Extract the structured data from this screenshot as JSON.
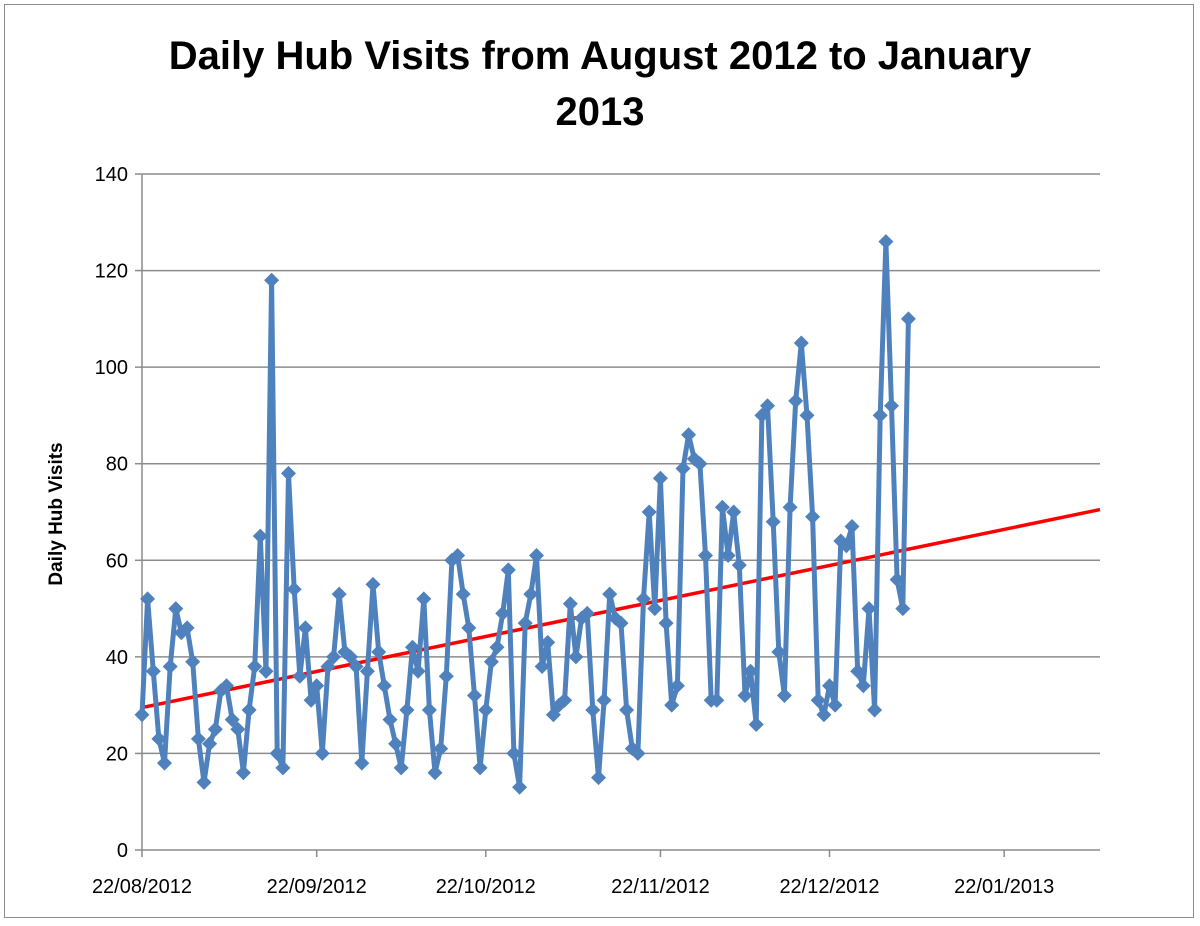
{
  "chart_data": {
    "type": "line",
    "title_lines": [
      "Daily Hub Visits from August 2012 to January",
      "2013"
    ],
    "xlabel": "",
    "ylabel": "Daily Hub Visits",
    "ylim": [
      0,
      140
    ],
    "y_ticks": [
      0,
      20,
      40,
      60,
      80,
      100,
      120,
      140
    ],
    "x_ticks": [
      "22/08/2012",
      "22/09/2012",
      "22/10/2012",
      "22/11/2012",
      "22/12/2012",
      "22/01/2013"
    ],
    "xlim": [
      "2012-08-22",
      "2013-02-08"
    ],
    "grid": true,
    "legend": "none",
    "series": [
      {
        "color": "#4f81bd",
        "marker": "diamond",
        "points": [
          [
            "2012-08-22",
            28
          ],
          [
            "2012-08-23",
            52
          ],
          [
            "2012-08-24",
            37
          ],
          [
            "2012-08-25",
            23
          ],
          [
            "2012-08-26",
            18
          ],
          [
            "2012-08-27",
            38
          ],
          [
            "2012-08-28",
            50
          ],
          [
            "2012-08-29",
            45
          ],
          [
            "2012-08-30",
            46
          ],
          [
            "2012-08-31",
            39
          ],
          [
            "2012-09-01",
            23
          ],
          [
            "2012-09-02",
            14
          ],
          [
            "2012-09-03",
            22
          ],
          [
            "2012-09-04",
            25
          ],
          [
            "2012-09-05",
            33
          ],
          [
            "2012-09-06",
            34
          ],
          [
            "2012-09-07",
            27
          ],
          [
            "2012-09-08",
            25
          ],
          [
            "2012-09-09",
            16
          ],
          [
            "2012-09-10",
            29
          ],
          [
            "2012-09-11",
            38
          ],
          [
            "2012-09-12",
            65
          ],
          [
            "2012-09-13",
            37
          ],
          [
            "2012-09-14",
            118
          ],
          [
            "2012-09-15",
            20
          ],
          [
            "2012-09-16",
            17
          ],
          [
            "2012-09-17",
            78
          ],
          [
            "2012-09-18",
            54
          ],
          [
            "2012-09-19",
            36
          ],
          [
            "2012-09-20",
            46
          ],
          [
            "2012-09-21",
            31
          ],
          [
            "2012-09-22",
            34
          ],
          [
            "2012-09-23",
            20
          ],
          [
            "2012-09-24",
            38
          ],
          [
            "2012-09-25",
            40
          ],
          [
            "2012-09-26",
            53
          ],
          [
            "2012-09-27",
            41
          ],
          [
            "2012-09-28",
            40
          ],
          [
            "2012-09-29",
            38
          ],
          [
            "2012-09-30",
            18
          ],
          [
            "2012-10-01",
            37
          ],
          [
            "2012-10-02",
            55
          ],
          [
            "2012-10-03",
            41
          ],
          [
            "2012-10-04",
            34
          ],
          [
            "2012-10-05",
            27
          ],
          [
            "2012-10-06",
            22
          ],
          [
            "2012-10-07",
            17
          ],
          [
            "2012-10-08",
            29
          ],
          [
            "2012-10-09",
            42
          ],
          [
            "2012-10-10",
            37
          ],
          [
            "2012-10-11",
            52
          ],
          [
            "2012-10-12",
            29
          ],
          [
            "2012-10-13",
            16
          ],
          [
            "2012-10-14",
            21
          ],
          [
            "2012-10-15",
            36
          ],
          [
            "2012-10-16",
            60
          ],
          [
            "2012-10-17",
            61
          ],
          [
            "2012-10-18",
            53
          ],
          [
            "2012-10-19",
            46
          ],
          [
            "2012-10-20",
            32
          ],
          [
            "2012-10-21",
            17
          ],
          [
            "2012-10-22",
            29
          ],
          [
            "2012-10-23",
            39
          ],
          [
            "2012-10-24",
            42
          ],
          [
            "2012-10-25",
            49
          ],
          [
            "2012-10-26",
            58
          ],
          [
            "2012-10-27",
            20
          ],
          [
            "2012-10-28",
            13
          ],
          [
            "2012-10-29",
            47
          ],
          [
            "2012-10-30",
            53
          ],
          [
            "2012-10-31",
            61
          ],
          [
            "2012-11-01",
            38
          ],
          [
            "2012-11-02",
            43
          ],
          [
            "2012-11-03",
            28
          ],
          [
            "2012-11-04",
            30
          ],
          [
            "2012-11-05",
            31
          ],
          [
            "2012-11-06",
            51
          ],
          [
            "2012-11-07",
            40
          ],
          [
            "2012-11-08",
            48
          ],
          [
            "2012-11-09",
            49
          ],
          [
            "2012-11-10",
            29
          ],
          [
            "2012-11-11",
            15
          ],
          [
            "2012-11-12",
            31
          ],
          [
            "2012-11-13",
            53
          ],
          [
            "2012-11-14",
            48
          ],
          [
            "2012-11-15",
            47
          ],
          [
            "2012-11-16",
            29
          ],
          [
            "2012-11-17",
            21
          ],
          [
            "2012-11-18",
            20
          ],
          [
            "2012-11-19",
            52
          ],
          [
            "2012-11-20",
            70
          ],
          [
            "2012-11-21",
            50
          ],
          [
            "2012-11-22",
            77
          ],
          [
            "2012-11-23",
            47
          ],
          [
            "2012-11-24",
            30
          ],
          [
            "2012-11-25",
            34
          ],
          [
            "2012-11-26",
            79
          ],
          [
            "2012-11-27",
            86
          ],
          [
            "2012-11-28",
            81
          ],
          [
            "2012-11-29",
            80
          ],
          [
            "2012-11-30",
            61
          ],
          [
            "2012-12-01",
            31
          ],
          [
            "2012-12-02",
            31
          ],
          [
            "2012-12-03",
            71
          ],
          [
            "2012-12-04",
            61
          ],
          [
            "2012-12-05",
            70
          ],
          [
            "2012-12-06",
            59
          ],
          [
            "2012-12-07",
            32
          ],
          [
            "2012-12-08",
            37
          ],
          [
            "2012-12-09",
            26
          ],
          [
            "2012-12-10",
            90
          ],
          [
            "2012-12-11",
            92
          ],
          [
            "2012-12-12",
            68
          ],
          [
            "2012-12-13",
            41
          ],
          [
            "2012-12-14",
            32
          ],
          [
            "2012-12-15",
            71
          ],
          [
            "2012-12-16",
            93
          ],
          [
            "2012-12-17",
            105
          ],
          [
            "2012-12-18",
            90
          ],
          [
            "2012-12-19",
            69
          ],
          [
            "2012-12-20",
            31
          ],
          [
            "2012-12-21",
            28
          ],
          [
            "2012-12-22",
            34
          ],
          [
            "2012-12-23",
            30
          ],
          [
            "2012-12-24",
            64
          ],
          [
            "2012-12-25",
            63
          ],
          [
            "2012-12-26",
            67
          ],
          [
            "2012-12-27",
            37
          ],
          [
            "2012-12-28",
            34
          ],
          [
            "2012-12-29",
            50
          ],
          [
            "2012-12-30",
            29
          ],
          [
            "2012-12-31",
            90
          ],
          [
            "2013-01-01",
            126
          ],
          [
            "2013-01-02",
            92
          ],
          [
            "2013-01-03",
            56
          ],
          [
            "2013-01-04",
            50
          ],
          [
            "2013-01-05",
            110
          ]
        ]
      }
    ],
    "trendline": {
      "color": "#ff0000",
      "from": [
        "2012-08-22",
        29.5
      ],
      "to": [
        "2013-02-08",
        70.5
      ]
    }
  }
}
